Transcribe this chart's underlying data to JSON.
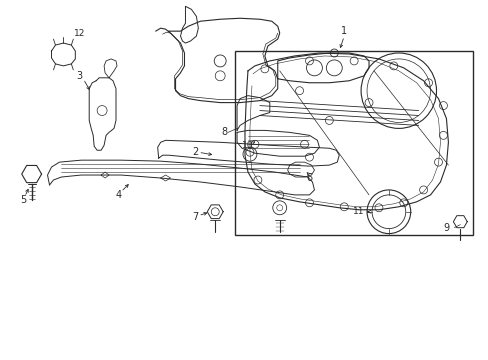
{
  "background_color": "#ffffff",
  "line_color": "#2a2a2a",
  "fig_width": 4.89,
  "fig_height": 3.6,
  "dpi": 100,
  "font_size": 7.0
}
